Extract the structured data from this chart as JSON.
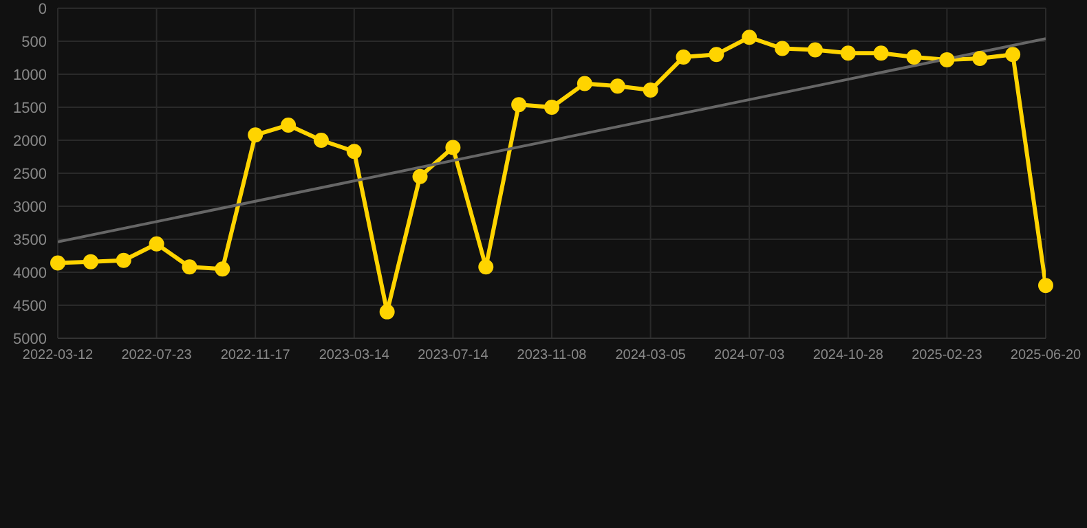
{
  "chart_data": {
    "type": "line",
    "categories": [
      "2022-03-12",
      null,
      null,
      "2022-07-23",
      null,
      null,
      "2022-11-17",
      null,
      null,
      "2023-03-14",
      null,
      null,
      "2023-07-14",
      null,
      null,
      "2023-11-08",
      null,
      null,
      "2024-03-05",
      null,
      null,
      "2024-07-03",
      null,
      null,
      "2024-10-28",
      null,
      null,
      "2025-02-23",
      null,
      null,
      "2025-06-20"
    ],
    "series": [
      {
        "color": "#ffd400",
        "values": [
          3860,
          3840,
          3820,
          3570,
          3920,
          3950,
          1920,
          1770,
          2000,
          2170,
          4600,
          2550,
          2110,
          3920,
          1460,
          1500,
          1140,
          1180,
          1240,
          740,
          700,
          440,
          610,
          630,
          680,
          680,
          740,
          780,
          760,
          700,
          4200
        ]
      },
      {
        "type": "line",
        "color": "#666666",
        "marker": "none",
        "values": [
          3540,
          null,
          null,
          null,
          null,
          null,
          null,
          null,
          null,
          null,
          null,
          null,
          null,
          null,
          null,
          null,
          null,
          null,
          null,
          null,
          null,
          null,
          null,
          null,
          null,
          null,
          null,
          null,
          null,
          null,
          460
        ]
      }
    ],
    "ylim": [
      5000,
      0
    ],
    "yticks": [
      0,
      500,
      1000,
      1500,
      2000,
      2500,
      3000,
      3500,
      4000,
      4500,
      5000
    ],
    "grid": true,
    "marker": "circle",
    "legend": false
  }
}
